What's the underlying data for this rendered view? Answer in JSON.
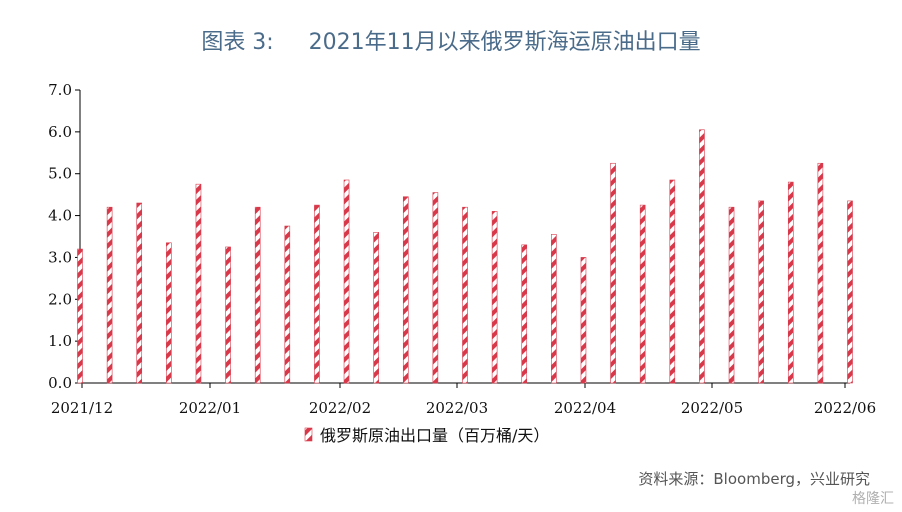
{
  "title": "图表 3:     2021年11月以来俄罗斯海运原油出口量",
  "source": "资料来源：Bloomberg，兴业研究",
  "watermark": "格隆汇",
  "colors": {
    "bar_stripe": "#d8394a",
    "axis": "#000000",
    "title": "#4a6b8a"
  },
  "chart_data": {
    "type": "bar",
    "ylim": [
      0,
      7
    ],
    "yticks": [
      "0.0",
      "1.0",
      "2.0",
      "3.0",
      "4.0",
      "5.0",
      "6.0",
      "7.0"
    ],
    "xtick_labels": [
      "2021/12",
      "2022/01",
      "2022/02",
      "2022/03",
      "2022/04",
      "2022/05",
      "2022/06"
    ],
    "grid": false,
    "legend_position": "bottom",
    "series": [
      {
        "name": "俄罗斯原油出口量（百万桶/天）",
        "values": [
          3.2,
          4.2,
          4.3,
          3.35,
          4.75,
          3.25,
          4.2,
          3.75,
          4.25,
          4.85,
          3.6,
          4.45,
          4.55,
          4.2,
          4.1,
          3.3,
          3.55,
          3.0,
          5.25,
          4.25,
          4.85,
          6.05,
          4.2,
          4.35,
          4.8,
          5.25,
          4.35
        ]
      }
    ]
  }
}
